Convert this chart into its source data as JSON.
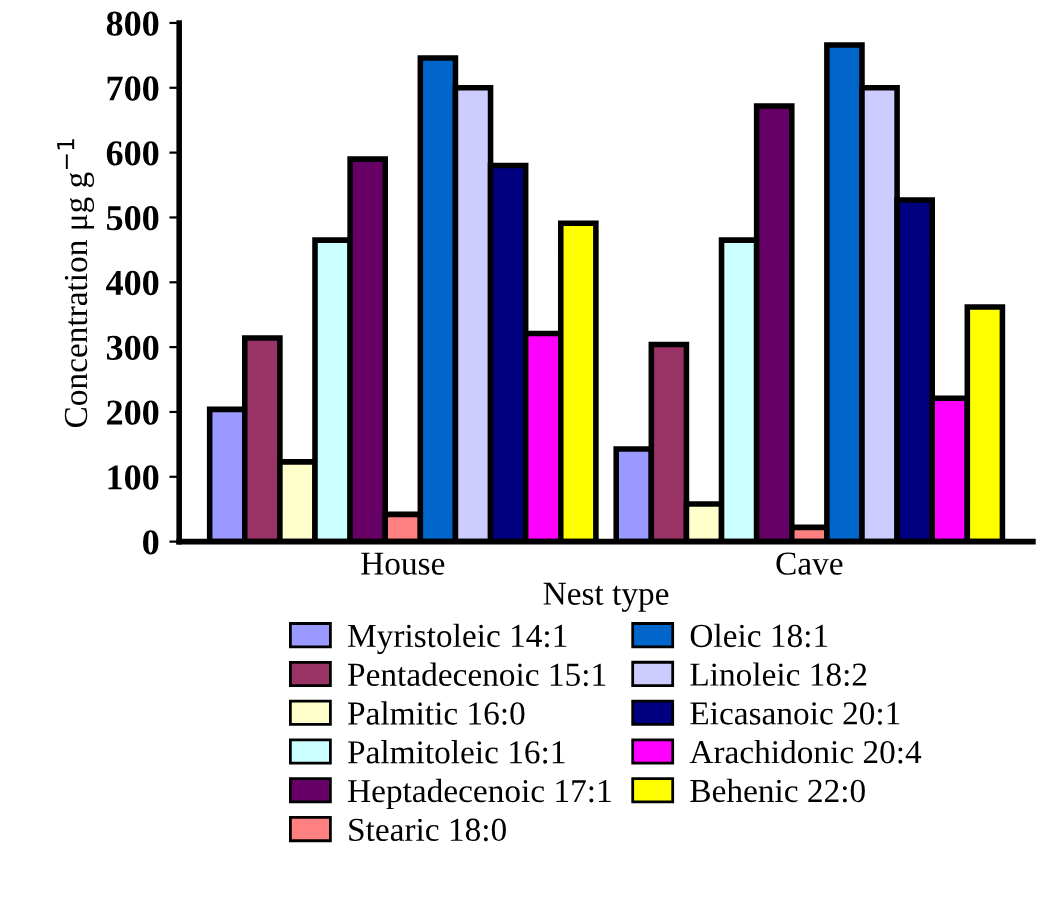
{
  "chart_data": {
    "type": "bar",
    "xlabel": "Nest type",
    "ylabel": "Concentration μg g$^{−1}$",
    "categories": [
      "House",
      "Cave"
    ],
    "series": [
      {
        "name": "Myristoleic 14:1",
        "color": "#9999ff",
        "values": [
          204,
          143
        ]
      },
      {
        "name": "Pentadecenoic 15:1",
        "color": "#993366",
        "values": [
          314,
          304
        ]
      },
      {
        "name": "Palmitic 16:0",
        "color": "#ffffcc",
        "values": [
          123,
          58
        ]
      },
      {
        "name": "Palmitoleic 16:1",
        "color": "#ccffff",
        "values": [
          465,
          465
        ]
      },
      {
        "name": "Heptadecenoic 17:1",
        "color": "#660066",
        "values": [
          590,
          672
        ]
      },
      {
        "name": "Stearic 18:0",
        "color": "#ff8080",
        "values": [
          42,
          22
        ]
      },
      {
        "name": "Oleic 18:1",
        "color": "#0066cc",
        "values": [
          746,
          766
        ]
      },
      {
        "name": "Linoleic 18:2",
        "color": "#ccccff",
        "values": [
          700,
          700
        ]
      },
      {
        "name": "Eicasanoic 20:1",
        "color": "#000080",
        "values": [
          580,
          527
        ]
      },
      {
        "name": "Arachidonic 20:4",
        "color": "#ff00ff",
        "values": [
          321,
          221
        ]
      },
      {
        "name": "Behenic 22:0",
        "color": "#ffff00",
        "values": [
          491,
          362
        ]
      }
    ],
    "ylim": [
      0,
      800
    ],
    "yticks": [
      0,
      100,
      200,
      300,
      400,
      500,
      600,
      700,
      800
    ],
    "grid": false,
    "legend": "bottom"
  }
}
